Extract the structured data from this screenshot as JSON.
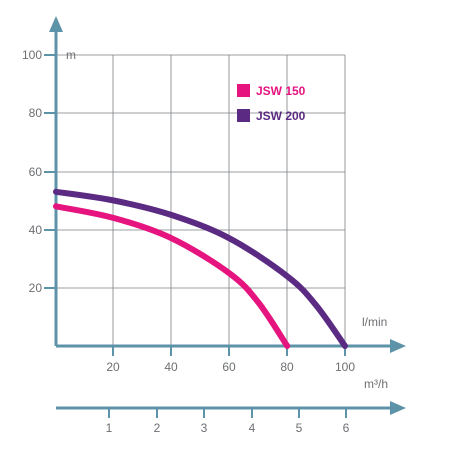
{
  "chart_data": {
    "type": "line",
    "y_unit": "m",
    "x_unit_primary": "l/min",
    "x_unit_secondary": "m³/h",
    "ylim": [
      0,
      100
    ],
    "xlim": [
      0,
      100
    ],
    "y_ticks": [
      "20",
      "40",
      "60",
      "80",
      "100"
    ],
    "x_ticks_primary": [
      "20",
      "40",
      "60",
      "80",
      "100"
    ],
    "x_ticks_secondary": [
      "1",
      "2",
      "3",
      "4",
      "5",
      "6"
    ],
    "grid": true,
    "legend_position": "top-right",
    "series": [
      {
        "name": "JSW 150",
        "color": "#e5147f",
        "x": [
          0,
          20,
          40,
          60,
          70,
          80
        ],
        "y": [
          48,
          44,
          37,
          25,
          15,
          0
        ]
      },
      {
        "name": "JSW 200",
        "color": "#5b2a82",
        "x": [
          0,
          20,
          40,
          60,
          80,
          90,
          100
        ],
        "y": [
          53,
          50,
          45,
          37,
          24,
          14,
          0
        ]
      }
    ]
  }
}
